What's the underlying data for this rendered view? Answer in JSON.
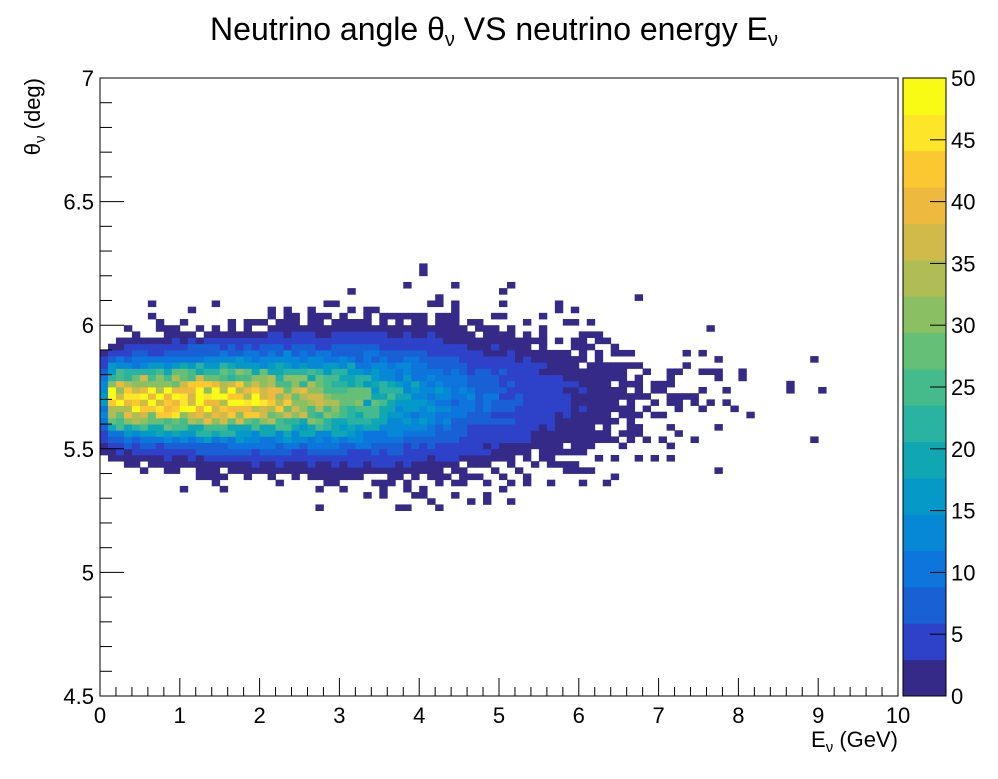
{
  "chart_data": {
    "type": "heatmap",
    "title": "Neutrino angle θν VS neutrino energy Eν",
    "title_parts": {
      "pre": "Neutrino angle θ",
      "sub1": "ν",
      "mid": " VS neutrino energy E",
      "sub2": "ν"
    },
    "xlabel": "Eν (GeV)",
    "xlabel_parts": {
      "pre": "E",
      "sub": "ν",
      "post": " (GeV)"
    },
    "ylabel": "θν (deg)",
    "ylabel_parts": {
      "pre": "θ",
      "sub": "ν",
      "post": " (deg)"
    },
    "xlim": [
      0,
      10
    ],
    "ylim": [
      4.5,
      7
    ],
    "zlim": [
      0,
      50
    ],
    "x_ticks": [
      "0",
      "1",
      "2",
      "3",
      "4",
      "5",
      "6",
      "7",
      "8",
      "9",
      "10"
    ],
    "y_ticks": [
      "4.5",
      "5",
      "5.5",
      "6",
      "6.5",
      "7"
    ],
    "z_ticks": [
      "0",
      "5",
      "10",
      "15",
      "20",
      "25",
      "30",
      "35",
      "40",
      "45",
      "50"
    ],
    "bins": {
      "x": 100,
      "y": 100
    },
    "grid": false,
    "colorbar": "right",
    "core": {
      "x_peak": 1.4,
      "y_peak": 5.7,
      "peak_count": 46
    },
    "colormap": [
      "#352a87",
      "#2d42c8",
      "#1860d4",
      "#0d75dc",
      "#0788d7",
      "#0599c8",
      "#10a7b3",
      "#29b3a0",
      "#45bb8c",
      "#66bf76",
      "#8bbf63",
      "#b0bd54",
      "#d1b94a",
      "#edb93f",
      "#fbc832",
      "#fde629",
      "#f9fb15"
    ]
  }
}
